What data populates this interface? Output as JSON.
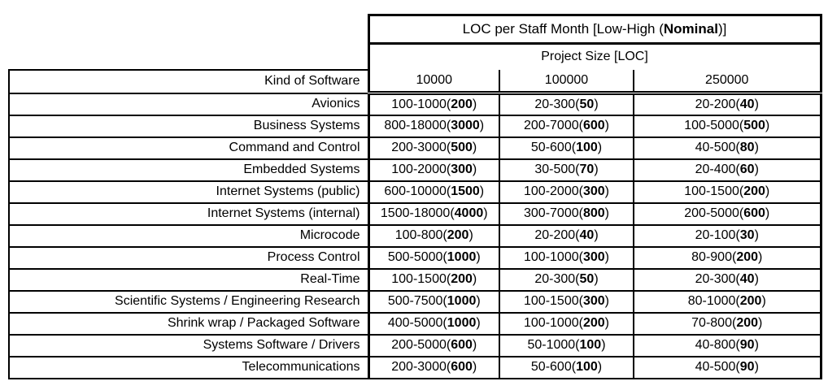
{
  "table": {
    "title": {
      "pre": "LOC per Staff Month [Low-High (",
      "bold": "Nominal",
      "post": ")]"
    },
    "subtitle": "Project Size [LOC]",
    "row_header": "Kind of Software",
    "size_columns": [
      "10000",
      "100000",
      "250000"
    ],
    "text_color": "#000000",
    "border_color": "#000000",
    "background_color": "#ffffff",
    "rows": [
      {
        "label": "Avionics",
        "cells": [
          {
            "pre": "100-1000(",
            "bold": "200",
            "post": ")"
          },
          {
            "pre": "20-300(",
            "bold": "50",
            "post": ")"
          },
          {
            "pre": "20-200(",
            "bold": "40",
            "post": ")"
          }
        ]
      },
      {
        "label": "Business Systems",
        "cells": [
          {
            "pre": "800-18000(",
            "bold": "3000",
            "post": ")"
          },
          {
            "pre": "200-7000(",
            "bold": "600",
            "post": ")"
          },
          {
            "pre": "100-5000(",
            "bold": "500",
            "post": ")"
          }
        ]
      },
      {
        "label": "Command and Control",
        "cells": [
          {
            "pre": "200-3000(",
            "bold": "500",
            "post": ")"
          },
          {
            "pre": "50-600(",
            "bold": "100",
            "post": ")"
          },
          {
            "pre": "40-500(",
            "bold": "80",
            "post": ")"
          }
        ]
      },
      {
        "label": "Embedded Systems",
        "cells": [
          {
            "pre": "100-2000(",
            "bold": "300",
            "post": ")"
          },
          {
            "pre": "30-500(",
            "bold": "70",
            "post": ")"
          },
          {
            "pre": "20-400(",
            "bold": "60",
            "post": ")"
          }
        ]
      },
      {
        "label": "Internet Systems (public)",
        "cells": [
          {
            "pre": "600-10000(",
            "bold": "1500",
            "post": ")"
          },
          {
            "pre": "100-2000(",
            "bold": "300",
            "post": ")"
          },
          {
            "pre": "100-1500(",
            "bold": "200",
            "post": ")"
          }
        ]
      },
      {
        "label": "Internet Systems (internal)",
        "cells": [
          {
            "pre": "1500-18000(",
            "bold": "4000",
            "post": ")"
          },
          {
            "pre": "300-7000(",
            "bold": "800",
            "post": ")"
          },
          {
            "pre": "200-5000(",
            "bold": "600",
            "post": ")"
          }
        ]
      },
      {
        "label": "Microcode",
        "cells": [
          {
            "pre": "100-800(",
            "bold": "200",
            "post": ")"
          },
          {
            "pre": "20-200(",
            "bold": "40",
            "post": ")"
          },
          {
            "pre": "20-100(",
            "bold": "30",
            "post": ")"
          }
        ]
      },
      {
        "label": "Process Control",
        "cells": [
          {
            "pre": "500-5000(",
            "bold": "1000",
            "post": ")"
          },
          {
            "pre": "100-1000(",
            "bold": "300",
            "post": ")"
          },
          {
            "pre": "80-900(",
            "bold": "200",
            "post": ")"
          }
        ]
      },
      {
        "label": "Real-Time",
        "cells": [
          {
            "pre": "100-1500(",
            "bold": "200",
            "post": ")"
          },
          {
            "pre": "20-300(",
            "bold": "50",
            "post": ")"
          },
          {
            "pre": "20-300(",
            "bold": "40",
            "post": ")"
          }
        ]
      },
      {
        "label": "Scientific Systems / Engineering Research",
        "cells": [
          {
            "pre": "500-7500(",
            "bold": "1000",
            "post": ")"
          },
          {
            "pre": "100-1500(",
            "bold": "300",
            "post": ")"
          },
          {
            "pre": "80-1000(",
            "bold": "200",
            "post": ")"
          }
        ]
      },
      {
        "label": "Shrink wrap / Packaged Software",
        "cells": [
          {
            "pre": "400-5000(",
            "bold": "1000",
            "post": ")"
          },
          {
            "pre": "100-1000(",
            "bold": "200",
            "post": ")"
          },
          {
            "pre": "70-800(",
            "bold": "200",
            "post": ")"
          }
        ]
      },
      {
        "label": "Systems Software / Drivers",
        "cells": [
          {
            "pre": "200-5000(",
            "bold": "600",
            "post": ")"
          },
          {
            "pre": "50-1000(",
            "bold": "100",
            "post": ")"
          },
          {
            "pre": "40-800(",
            "bold": "90",
            "post": ")"
          }
        ]
      },
      {
        "label": "Telecommunications",
        "cells": [
          {
            "pre": "200-3000(",
            "bold": "600",
            "post": ")"
          },
          {
            "pre": "50-600(",
            "bold": "100",
            "post": ")"
          },
          {
            "pre": "40-500(",
            "bold": "90",
            "post": ")"
          }
        ]
      }
    ]
  }
}
